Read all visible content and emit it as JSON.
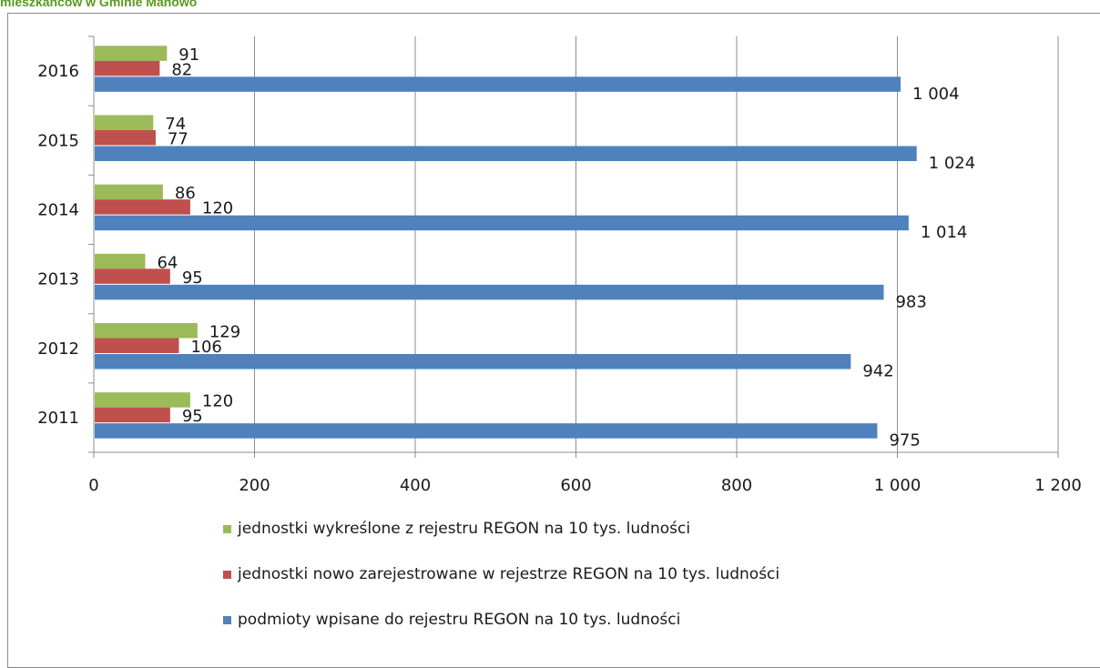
{
  "caption": "mieszkańców w Gminie Manowo",
  "chart_data": {
    "type": "bar",
    "orientation": "horizontal",
    "categories": [
      "2011",
      "2012",
      "2013",
      "2014",
      "2015",
      "2016"
    ],
    "series": [
      {
        "name": "jednostki wykreślone z rejestru REGON na 10 tys. ludności",
        "color": "#9bbb59",
        "values": [
          120,
          129,
          64,
          86,
          74,
          91
        ],
        "labels": [
          "120",
          "129",
          "64",
          "86",
          "74",
          "91"
        ]
      },
      {
        "name": "jednostki nowo zarejestrowane w rejestrze REGON na 10 tys. ludności",
        "color": "#c0504d",
        "values": [
          95,
          106,
          95,
          120,
          77,
          82
        ],
        "labels": [
          "95",
          "106",
          "95",
          "120",
          "77",
          "82"
        ]
      },
      {
        "name": "podmioty wpisane do rejestru REGON na 10 tys. ludności",
        "color": "#4f81bd",
        "values": [
          975,
          942,
          983,
          1014,
          1024,
          1004
        ],
        "labels": [
          "975",
          "942",
          "983",
          "1 014",
          "1 024",
          "1 004"
        ]
      }
    ],
    "xlim": [
      0,
      1200
    ],
    "xticks": [
      0,
      200,
      400,
      600,
      800,
      1000,
      1200
    ],
    "xtick_labels": [
      "0",
      "200",
      "400",
      "600",
      "800",
      "1 000",
      "1 200"
    ],
    "grid": true,
    "legend_position": "bottom"
  }
}
